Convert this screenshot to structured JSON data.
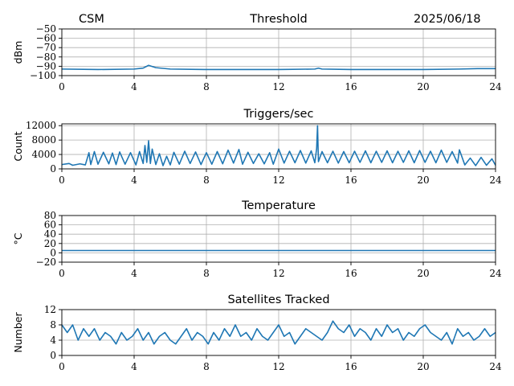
{
  "header": {
    "station": "CSM",
    "date": "2025/06/18"
  },
  "chart_data": [
    {
      "type": "line",
      "title": "Threshold",
      "xlabel": "",
      "ylabel": "dBm",
      "xlim": [
        0,
        24
      ],
      "ylim": [
        -100,
        -50
      ],
      "xticks": [
        0,
        4,
        8,
        12,
        16,
        20,
        24
      ],
      "yticks": [
        -100,
        -90,
        -80,
        -70,
        -60,
        -50
      ],
      "ytick_labels": [
        "−100",
        "−90",
        "−80",
        "−70",
        "−60",
        "−50"
      ],
      "grid": true,
      "series": [
        {
          "color": "#1f77b4",
          "x": [
            0,
            2,
            4,
            4.5,
            4.8,
            5.2,
            6,
            8,
            12,
            14,
            14.2,
            14.4,
            16,
            20,
            22,
            23,
            24
          ],
          "y": [
            -93,
            -93.5,
            -93,
            -92,
            -89,
            -91.5,
            -93,
            -93.5,
            -93.5,
            -93,
            -92,
            -93,
            -93.5,
            -93.5,
            -93,
            -92.5,
            -92.5
          ]
        }
      ]
    },
    {
      "type": "line",
      "title": "Triggers/sec",
      "xlabel": "",
      "ylabel": "Count",
      "xlim": [
        0,
        24
      ],
      "ylim": [
        0,
        12500
      ],
      "xticks": [
        0,
        4,
        8,
        12,
        16,
        20,
        24
      ],
      "yticks": [
        0,
        4000,
        8000,
        12000
      ],
      "grid": true,
      "series": [
        {
          "color": "#1f77b4",
          "x": [
            0,
            0.4,
            0.6,
            1.0,
            1.3,
            1.5,
            1.6,
            1.8,
            2.0,
            2.3,
            2.6,
            2.8,
            3.0,
            3.2,
            3.5,
            3.8,
            4.1,
            4.3,
            4.5,
            4.6,
            4.7,
            4.8,
            4.9,
            5.0,
            5.2,
            5.4,
            5.6,
            5.8,
            6.0,
            6.2,
            6.5,
            6.8,
            7.1,
            7.4,
            7.7,
            8.0,
            8.3,
            8.6,
            8.9,
            9.2,
            9.5,
            9.8,
            10.0,
            10.3,
            10.6,
            10.9,
            11.2,
            11.5,
            11.7,
            12.0,
            12.3,
            12.6,
            12.9,
            13.2,
            13.5,
            13.8,
            14.0,
            14.1,
            14.15,
            14.2,
            14.4,
            14.7,
            15.0,
            15.3,
            15.6,
            15.9,
            16.2,
            16.5,
            16.8,
            17.1,
            17.4,
            17.7,
            18.0,
            18.3,
            18.6,
            18.9,
            19.2,
            19.5,
            19.8,
            20.1,
            20.4,
            20.7,
            21.0,
            21.3,
            21.6,
            21.9,
            22.0,
            22.3,
            22.6,
            22.9,
            23.2,
            23.5,
            23.8,
            24.0
          ],
          "y": [
            1200,
            1500,
            1000,
            1400,
            1100,
            4500,
            1200,
            4800,
            1300,
            4600,
            1400,
            4400,
            1200,
            4700,
            1300,
            4500,
            1100,
            4800,
            1500,
            6500,
            1800,
            7800,
            1500,
            5500,
            1200,
            4200,
            900,
            3500,
            1100,
            4600,
            1300,
            4900,
            1500,
            4700,
            1200,
            4500,
            1300,
            4800,
            1400,
            5200,
            1600,
            5400,
            1300,
            4600,
            1500,
            4200,
            1400,
            4500,
            1300,
            5500,
            1600,
            4900,
            1700,
            5100,
            1600,
            5000,
            1700,
            5600,
            12000,
            2000,
            4800,
            1700,
            4900,
            1600,
            4800,
            1700,
            4900,
            1800,
            5000,
            1700,
            4900,
            1800,
            5000,
            1700,
            4900,
            1800,
            5000,
            1700,
            5100,
            1800,
            4900,
            1700,
            5200,
            1800,
            4800,
            1600,
            5300,
            1100,
            3000,
            900,
            3200,
            1000,
            2800,
            1000
          ]
        }
      ]
    },
    {
      "type": "line",
      "title": "Temperature",
      "xlabel": "",
      "ylabel": "°C",
      "xlim": [
        0,
        24
      ],
      "ylim": [
        -20,
        80
      ],
      "xticks": [
        0,
        4,
        8,
        12,
        16,
        20,
        24
      ],
      "yticks": [
        -20,
        0,
        20,
        40,
        60,
        80
      ],
      "ytick_labels": [
        "−20",
        "0",
        "20",
        "40",
        "60",
        "80"
      ],
      "grid": true,
      "series": [
        {
          "color": "#1f77b4",
          "x": [
            0,
            24
          ],
          "y": [
            5,
            5
          ]
        }
      ]
    },
    {
      "type": "line",
      "title": "Satellites Tracked",
      "xlabel": "",
      "ylabel": "Number",
      "xlim": [
        0,
        24
      ],
      "ylim": [
        0,
        12
      ],
      "xticks": [
        0,
        4,
        8,
        12,
        16,
        20,
        24
      ],
      "yticks": [
        0,
        4,
        8,
        12
      ],
      "grid": true,
      "series": [
        {
          "color": "#1f77b4",
          "x": [
            0,
            0.3,
            0.6,
            0.9,
            1.2,
            1.5,
            1.8,
            2.1,
            2.4,
            2.7,
            3.0,
            3.3,
            3.6,
            3.9,
            4.2,
            4.5,
            4.8,
            5.1,
            5.4,
            5.7,
            6.0,
            6.3,
            6.6,
            6.9,
            7.2,
            7.5,
            7.8,
            8.1,
            8.4,
            8.7,
            9.0,
            9.3,
            9.6,
            9.9,
            10.2,
            10.5,
            10.8,
            11.1,
            11.4,
            11.7,
            12.0,
            12.3,
            12.6,
            12.9,
            13.2,
            13.5,
            13.8,
            14.1,
            14.4,
            14.7,
            15.0,
            15.3,
            15.6,
            15.9,
            16.2,
            16.5,
            16.8,
            17.1,
            17.4,
            17.7,
            18.0,
            18.3,
            18.6,
            18.9,
            19.2,
            19.5,
            19.8,
            20.1,
            20.4,
            20.7,
            21.0,
            21.3,
            21.6,
            21.9,
            22.2,
            22.5,
            22.8,
            23.1,
            23.4,
            23.7,
            24.0
          ],
          "y": [
            8,
            6,
            8,
            4,
            7,
            5,
            7,
            4,
            6,
            5,
            3,
            6,
            4,
            5,
            7,
            4,
            6,
            3,
            5,
            6,
            4,
            3,
            5,
            7,
            4,
            6,
            5,
            3,
            6,
            4,
            7,
            5,
            8,
            5,
            6,
            4,
            7,
            5,
            4,
            6,
            8,
            5,
            6,
            3,
            5,
            7,
            6,
            5,
            4,
            6,
            9,
            7,
            6,
            8,
            5,
            7,
            6,
            4,
            7,
            5,
            8,
            6,
            7,
            4,
            6,
            5,
            7,
            8,
            6,
            5,
            4,
            6,
            3,
            7,
            5,
            6,
            4,
            5,
            7,
            5,
            6
          ]
        }
      ]
    }
  ]
}
